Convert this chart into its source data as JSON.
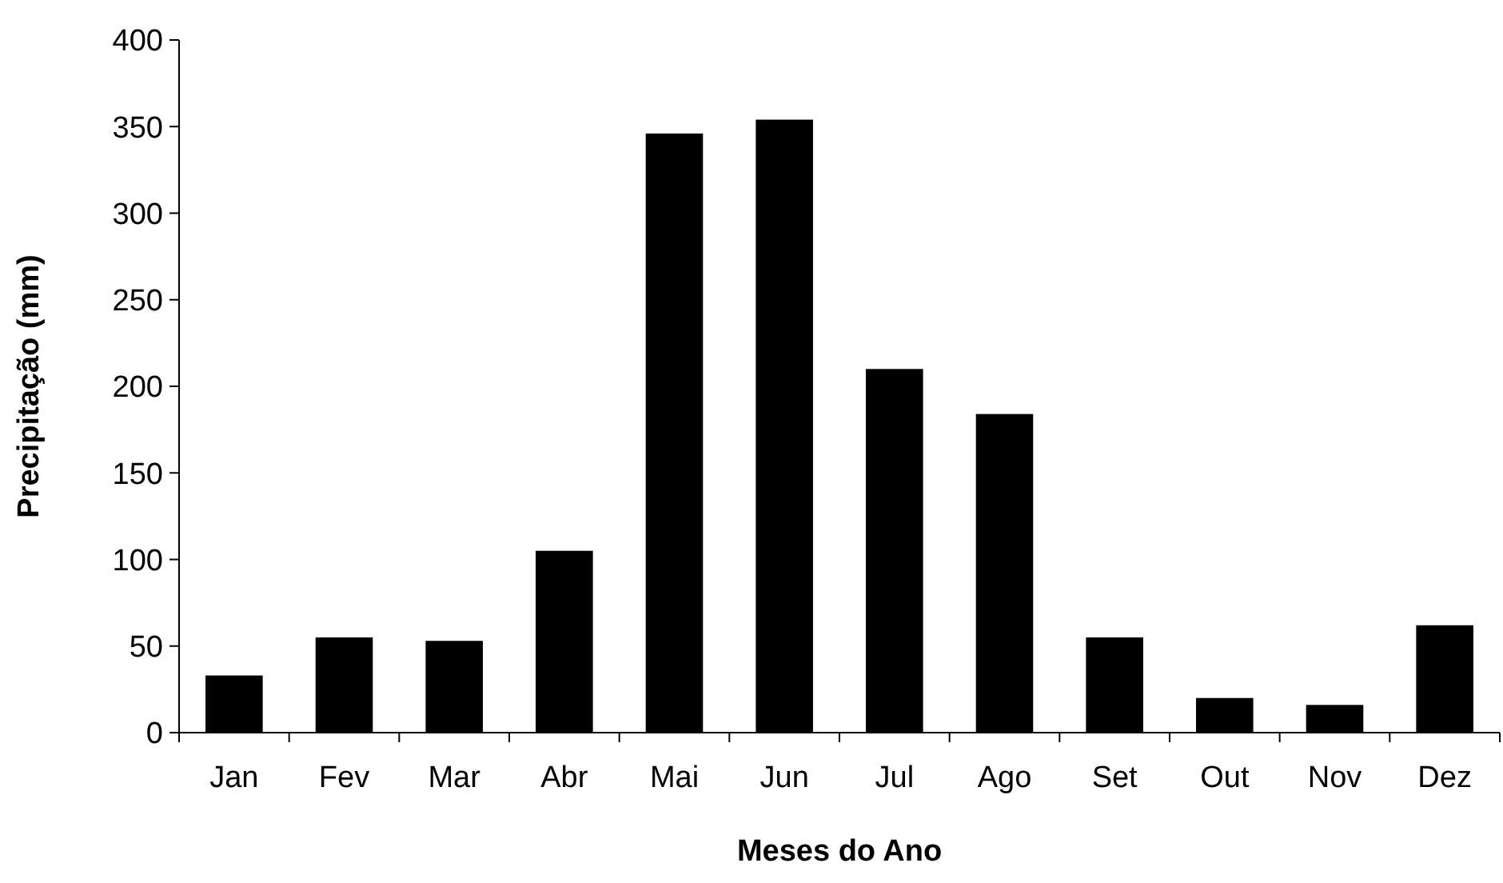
{
  "chart_data": {
    "type": "bar",
    "xlabel": "Meses do Ano",
    "ylabel": "Precipitação (mm)",
    "categories": [
      "Jan",
      "Fev",
      "Mar",
      "Abr",
      "Mai",
      "Jun",
      "Jul",
      "Ago",
      "Set",
      "Out",
      "Nov",
      "Dez"
    ],
    "values": [
      33,
      55,
      53,
      105,
      346,
      354,
      210,
      184,
      55,
      20,
      16,
      62
    ],
    "color": "#000000",
    "ylim": [
      0,
      400
    ],
    "yticks": [
      0,
      50,
      100,
      150,
      200,
      250,
      300,
      350,
      400
    ]
  }
}
